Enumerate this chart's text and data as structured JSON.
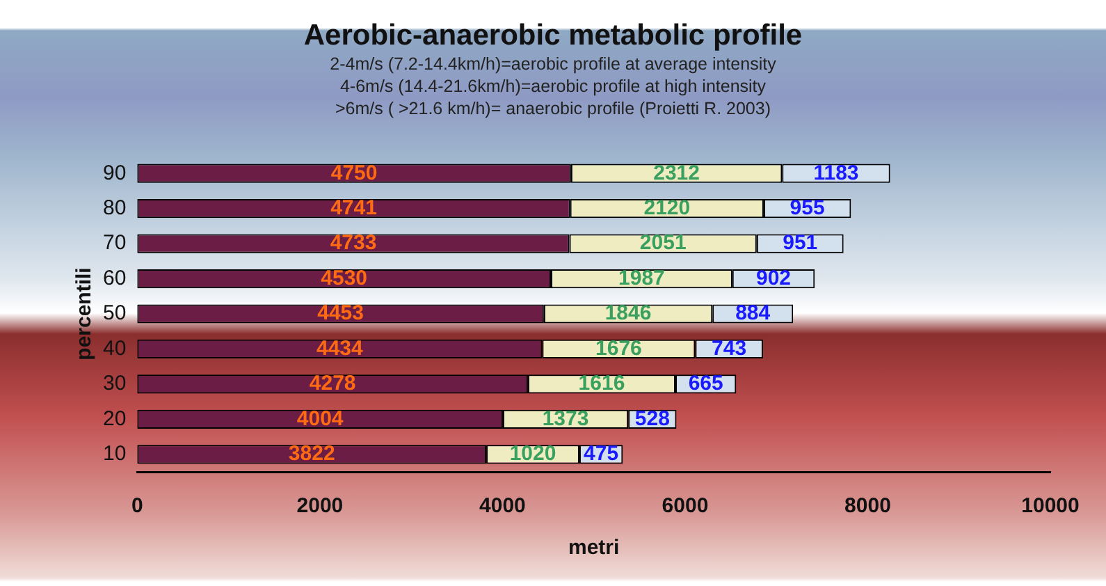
{
  "chart_data": {
    "type": "bar",
    "orientation": "horizontal",
    "stacked": true,
    "title": "Aerobic-anaerobic metabolic profile",
    "annotations": [
      "2-4m/s (7.2-14.4km/h)=aerobic profile at average intensity",
      "4-6m/s (14.4-21.6km/h)=aerobic profile at high intensity",
      ">6m/s ( >21.6 km/h)= anaerobic profile (Proietti R. 2003)"
    ],
    "categories": [
      "90",
      "80",
      "70",
      "60",
      "50",
      "40",
      "30",
      "20",
      "10"
    ],
    "series": [
      {
        "color": "#6b1d45",
        "values": [
          4750,
          4741,
          4733,
          4530,
          4453,
          4434,
          4278,
          4004,
          3822
        ]
      },
      {
        "color": "#eeecc0",
        "values": [
          2312,
          2120,
          2051,
          1987,
          1846,
          1676,
          1616,
          1373,
          1020
        ]
      },
      {
        "color": "#d3e0ee",
        "values": [
          1183,
          955,
          951,
          902,
          884,
          743,
          665,
          528,
          475
        ]
      }
    ],
    "data_labels": true,
    "xlabel": "metri",
    "ylabel": "percentili",
    "xlim": [
      0,
      10000
    ],
    "xticks": [
      0,
      2000,
      4000,
      6000,
      8000,
      10000
    ],
    "grid": false,
    "legend": false
  }
}
